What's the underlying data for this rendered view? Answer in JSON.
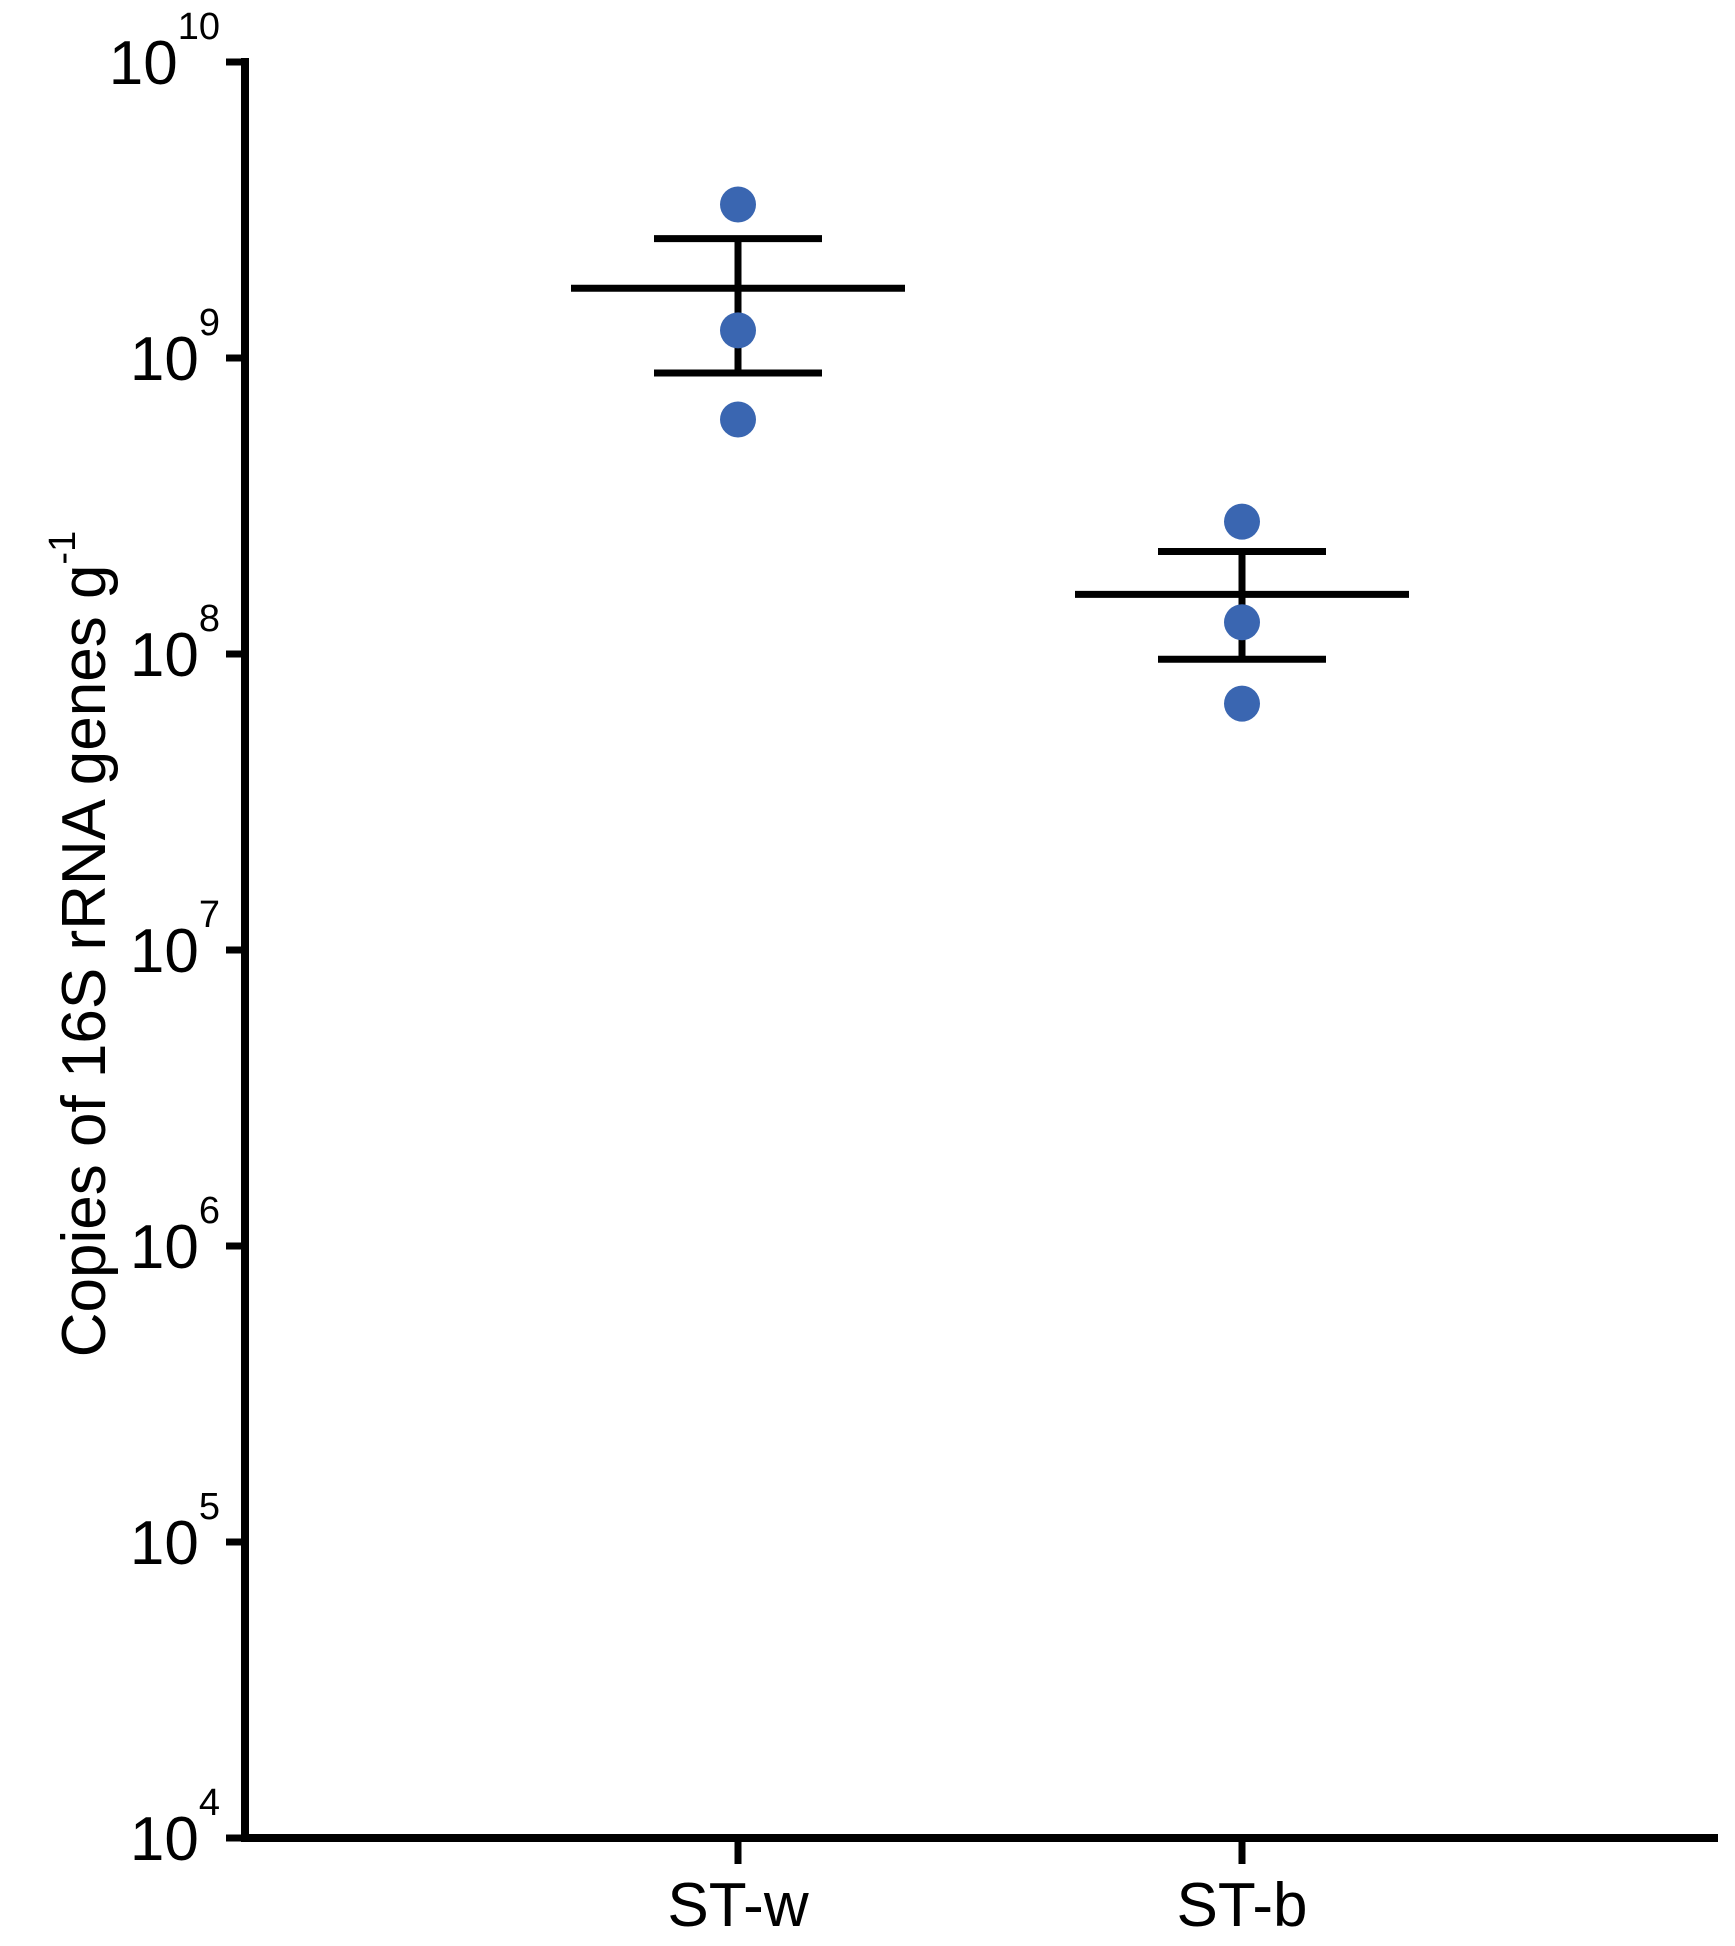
{
  "figure": {
    "background": "#ffffff"
  },
  "chart_data": {
    "type": "scatter",
    "title": "",
    "xlabel": "",
    "ylabel": "Copies of 16S rRNA genes g-1",
    "ylabel_main": "Copies of 16S rRNA genes g",
    "ylabel_superscript": "-1",
    "yaxis": {
      "scale": "log10",
      "base_label": "10",
      "tick_exponents": [
        4,
        5,
        6,
        7,
        8,
        9,
        10
      ],
      "min": 10000.0,
      "max": 10000000000.0
    },
    "grid": false,
    "legend_position": "none",
    "error_bar_style": "mean ± SEM with caps",
    "marker_shape": "circle",
    "marker_color": "#3a66b1",
    "axis_color": "#000000",
    "categories": [
      "ST-w",
      "ST-b"
    ],
    "series": [
      {
        "name": "ST-w",
        "points": [
          3300000000.0,
          1240000000.0,
          620000000.0
        ],
        "mean": 1720000000.0,
        "error_upper": 2530000000.0,
        "error_lower": 890000000.0
      },
      {
        "name": "ST-b",
        "points": [
          280000000.0,
          128000000.0,
          68000000.0
        ],
        "mean": 159000000.0,
        "error_upper": 222000000.0,
        "error_lower": 96000000.0
      }
    ]
  }
}
